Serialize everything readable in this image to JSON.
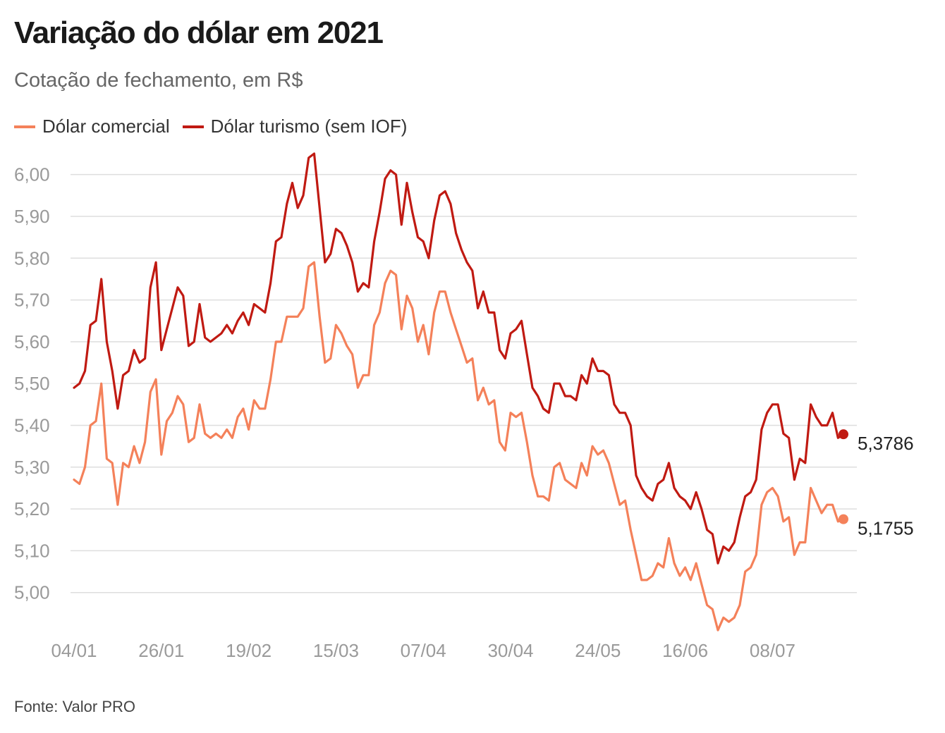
{
  "header": {
    "title": "Variação do dólar em 2021",
    "subtitle": "Cotação de fechamento, em R$"
  },
  "footer": {
    "source": "Fonte: Valor PRO"
  },
  "colors": {
    "comercial": "#f4815a",
    "turismo": "#c01a12",
    "grid": "#dedede",
    "tick": "#9a9a9a"
  },
  "chart_data": {
    "type": "line",
    "title": "Variação do dólar em 2021",
    "subtitle": "Cotação de fechamento, em R$",
    "xlabel": "",
    "ylabel": "",
    "ylim": [
      4.9,
      6.05
    ],
    "y_ticks": [
      5.0,
      5.1,
      5.2,
      5.3,
      5.4,
      5.5,
      5.6,
      5.7,
      5.8,
      5.9,
      6.0
    ],
    "y_tick_labels": [
      "5,00",
      "5,10",
      "5,20",
      "5,30",
      "5,40",
      "5,50",
      "5,60",
      "5,70",
      "5,80",
      "5,90",
      "6,00"
    ],
    "x_tick_labels": [
      "04/01",
      "26/01",
      "19/02",
      "15/03",
      "07/04",
      "30/04",
      "24/05",
      "16/06",
      "08/07"
    ],
    "x_tick_index": [
      0,
      16,
      32,
      48,
      64,
      80,
      96,
      112,
      128
    ],
    "grid": true,
    "legend_position": "top-left",
    "series": [
      {
        "name": "Dólar comercial",
        "color": "#f4815a",
        "last_label": "5,1755",
        "values": [
          5.27,
          5.26,
          5.3,
          5.4,
          5.41,
          5.5,
          5.32,
          5.31,
          5.21,
          5.31,
          5.3,
          5.35,
          5.31,
          5.36,
          5.48,
          5.51,
          5.33,
          5.41,
          5.43,
          5.47,
          5.45,
          5.36,
          5.37,
          5.45,
          5.38,
          5.37,
          5.38,
          5.37,
          5.39,
          5.37,
          5.42,
          5.44,
          5.39,
          5.46,
          5.44,
          5.44,
          5.51,
          5.6,
          5.6,
          5.66,
          5.66,
          5.66,
          5.68,
          5.78,
          5.79,
          5.66,
          5.55,
          5.56,
          5.64,
          5.62,
          5.59,
          5.57,
          5.49,
          5.52,
          5.52,
          5.64,
          5.67,
          5.74,
          5.77,
          5.76,
          5.63,
          5.71,
          5.68,
          5.6,
          5.64,
          5.57,
          5.67,
          5.72,
          5.72,
          5.67,
          5.63,
          5.59,
          5.55,
          5.56,
          5.46,
          5.49,
          5.45,
          5.46,
          5.36,
          5.34,
          5.43,
          5.42,
          5.43,
          5.36,
          5.28,
          5.23,
          5.23,
          5.22,
          5.3,
          5.31,
          5.27,
          5.26,
          5.25,
          5.31,
          5.28,
          5.35,
          5.33,
          5.34,
          5.31,
          5.26,
          5.21,
          5.22,
          5.15,
          5.09,
          5.03,
          5.03,
          5.04,
          5.07,
          5.06,
          5.13,
          5.07,
          5.04,
          5.06,
          5.03,
          5.07,
          5.02,
          4.97,
          4.96,
          4.91,
          4.94,
          4.93,
          4.94,
          4.97,
          5.05,
          5.06,
          5.09,
          5.21,
          5.24,
          5.25,
          5.23,
          5.17,
          5.18,
          5.09,
          5.12,
          5.12,
          5.25,
          5.22,
          5.19,
          5.21,
          5.21,
          5.17,
          5.1755
        ]
      },
      {
        "name": "Dólar turismo (sem IOF)",
        "color": "#c01a12",
        "last_label": "5,3786",
        "values": [
          5.49,
          5.5,
          5.53,
          5.64,
          5.65,
          5.75,
          5.6,
          5.53,
          5.44,
          5.52,
          5.53,
          5.58,
          5.55,
          5.56,
          5.73,
          5.79,
          5.58,
          5.63,
          5.68,
          5.73,
          5.71,
          5.59,
          5.6,
          5.69,
          5.61,
          5.6,
          5.61,
          5.62,
          5.64,
          5.62,
          5.65,
          5.67,
          5.64,
          5.69,
          5.68,
          5.67,
          5.74,
          5.84,
          5.85,
          5.93,
          5.98,
          5.92,
          5.95,
          6.04,
          6.05,
          5.92,
          5.79,
          5.81,
          5.87,
          5.86,
          5.83,
          5.79,
          5.72,
          5.74,
          5.73,
          5.84,
          5.91,
          5.99,
          6.01,
          6.0,
          5.88,
          5.98,
          5.91,
          5.85,
          5.84,
          5.8,
          5.89,
          5.95,
          5.96,
          5.93,
          5.86,
          5.82,
          5.79,
          5.77,
          5.68,
          5.72,
          5.67,
          5.67,
          5.58,
          5.56,
          5.62,
          5.63,
          5.65,
          5.57,
          5.49,
          5.47,
          5.44,
          5.43,
          5.5,
          5.5,
          5.47,
          5.47,
          5.46,
          5.52,
          5.5,
          5.56,
          5.53,
          5.53,
          5.52,
          5.45,
          5.43,
          5.43,
          5.4,
          5.28,
          5.25,
          5.23,
          5.22,
          5.26,
          5.27,
          5.31,
          5.25,
          5.23,
          5.22,
          5.2,
          5.24,
          5.2,
          5.15,
          5.14,
          5.07,
          5.11,
          5.1,
          5.12,
          5.18,
          5.23,
          5.24,
          5.27,
          5.39,
          5.43,
          5.45,
          5.45,
          5.38,
          5.37,
          5.27,
          5.32,
          5.31,
          5.45,
          5.42,
          5.4,
          5.4,
          5.43,
          5.37,
          5.3786
        ]
      }
    ]
  }
}
